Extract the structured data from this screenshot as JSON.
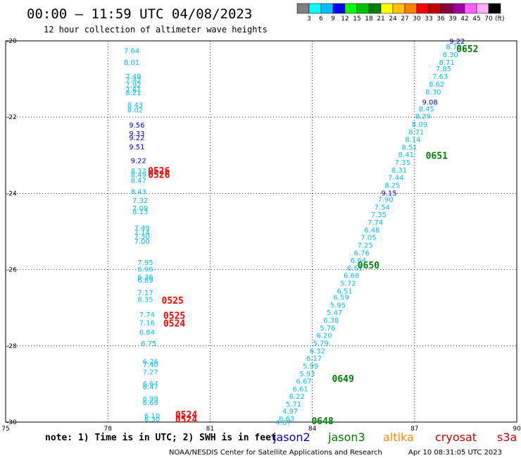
{
  "title": "00:00 – 11:59 UTC 04/08/2023",
  "subtitle": "12 hour collection of altimeter wave heights",
  "legend": {
    "unit": "(ft)",
    "colors": [
      "#808080",
      "#00ffff",
      "#00bfff",
      "#0000ff",
      "#00ff00",
      "#00c000",
      "#008000",
      "#ffff00",
      "#ffc000",
      "#ff8000",
      "#ff0000",
      "#c00000",
      "#8b0040",
      "#a000a0",
      "#ff60ff",
      "#ffb0ff",
      "#000000"
    ],
    "labels": [
      "3",
      "6",
      "9",
      "12",
      "15",
      "18",
      "21",
      "24",
      "27",
      "30",
      "33",
      "36",
      "39",
      "42",
      "45",
      "70"
    ]
  },
  "x_axis": {
    "ticks": [
      "75",
      "78",
      "81",
      "84",
      "87",
      "90"
    ],
    "values": [
      75,
      78,
      81,
      84,
      87,
      90
    ]
  },
  "y_axis": {
    "ticks": [
      "-20",
      "-22",
      "-24",
      "-26",
      "-28",
      "-30"
    ],
    "values": [
      -20,
      -22,
      -24,
      -26,
      -28,
      -30
    ]
  },
  "plot_extent": {
    "lon": [
      75,
      90
    ],
    "lat": [
      -30,
      -20
    ]
  },
  "colors": {
    "cyan": "#00bfff",
    "blue": "#0000cd",
    "red": "#ff0000",
    "green": "#008000",
    "orange": "#ff8c00",
    "darkred": "#cc0000",
    "grid": "#000000"
  },
  "observations": [
    {
      "lon": 78.7,
      "lat": -20.25,
      "text": "7.64",
      "color": "cyan"
    },
    {
      "lon": 78.7,
      "lat": -20.55,
      "text": "8.01",
      "color": "cyan"
    },
    {
      "lon": 78.75,
      "lat": -20.92,
      "text": "7.49",
      "color": "cyan"
    },
    {
      "lon": 78.75,
      "lat": -21.02,
      "text": "7.42",
      "color": "cyan"
    },
    {
      "lon": 78.75,
      "lat": -21.15,
      "text": "7.92",
      "color": "cyan"
    },
    {
      "lon": 78.75,
      "lat": -21.28,
      "text": "7.61",
      "color": "cyan"
    },
    {
      "lon": 78.75,
      "lat": -21.35,
      "text": "8.21",
      "color": "cyan"
    },
    {
      "lon": 78.8,
      "lat": -21.67,
      "text": "8.43",
      "color": "cyan"
    },
    {
      "lon": 78.8,
      "lat": -21.8,
      "text": "8.02",
      "color": "cyan"
    },
    {
      "lon": 78.85,
      "lat": -22.2,
      "text": "9.56",
      "color": "blue"
    },
    {
      "lon": 78.85,
      "lat": -22.42,
      "text": "9.33",
      "color": "blue"
    },
    {
      "lon": 78.85,
      "lat": -22.53,
      "text": "9.22",
      "color": "blue"
    },
    {
      "lon": 78.85,
      "lat": -22.77,
      "text": "9.51",
      "color": "blue"
    },
    {
      "lon": 78.9,
      "lat": -23.13,
      "text": "9.22",
      "color": "blue"
    },
    {
      "lon": 78.9,
      "lat": -23.4,
      "text": "8.33",
      "color": "cyan"
    },
    {
      "lon": 78.9,
      "lat": -23.5,
      "text": "8.49",
      "color": "cyan"
    },
    {
      "lon": 78.9,
      "lat": -23.65,
      "text": "8.47",
      "color": "cyan"
    },
    {
      "lon": 78.9,
      "lat": -23.95,
      "text": "8.43",
      "color": "cyan"
    },
    {
      "lon": 78.95,
      "lat": -24.18,
      "text": "7.32",
      "color": "cyan"
    },
    {
      "lon": 78.95,
      "lat": -24.38,
      "text": "7.09",
      "color": "cyan"
    },
    {
      "lon": 78.95,
      "lat": -24.47,
      "text": "8.13",
      "color": "cyan"
    },
    {
      "lon": 79.0,
      "lat": -24.9,
      "text": "7.49",
      "color": "cyan"
    },
    {
      "lon": 79.0,
      "lat": -25.02,
      "text": "7.14",
      "color": "cyan"
    },
    {
      "lon": 79.0,
      "lat": -25.12,
      "text": "7.30",
      "color": "cyan"
    },
    {
      "lon": 79.0,
      "lat": -25.25,
      "text": "7.00",
      "color": "cyan"
    },
    {
      "lon": 79.1,
      "lat": -25.8,
      "text": "7.95",
      "color": "cyan"
    },
    {
      "lon": 79.1,
      "lat": -25.98,
      "text": "6.96",
      "color": "cyan"
    },
    {
      "lon": 79.1,
      "lat": -26.18,
      "text": "6.36",
      "color": "cyan"
    },
    {
      "lon": 79.1,
      "lat": -26.27,
      "text": "6.89",
      "color": "cyan"
    },
    {
      "lon": 79.1,
      "lat": -26.6,
      "text": "7.17",
      "color": "cyan"
    },
    {
      "lon": 79.1,
      "lat": -26.77,
      "text": "8.35",
      "color": "cyan"
    },
    {
      "lon": 79.15,
      "lat": -27.17,
      "text": "7.74",
      "color": "cyan"
    },
    {
      "lon": 79.15,
      "lat": -27.38,
      "text": "7.16",
      "color": "cyan"
    },
    {
      "lon": 79.15,
      "lat": -27.63,
      "text": "6.84",
      "color": "cyan"
    },
    {
      "lon": 79.2,
      "lat": -27.93,
      "text": "6.75",
      "color": "cyan"
    },
    {
      "lon": 79.25,
      "lat": -28.4,
      "text": "6.26",
      "color": "cyan"
    },
    {
      "lon": 79.25,
      "lat": -28.48,
      "text": "7.40",
      "color": "cyan"
    },
    {
      "lon": 79.25,
      "lat": -28.68,
      "text": "7.27",
      "color": "cyan"
    },
    {
      "lon": 79.25,
      "lat": -28.98,
      "text": "6.64",
      "color": "cyan"
    },
    {
      "lon": 79.25,
      "lat": -29.07,
      "text": "6.47",
      "color": "cyan"
    },
    {
      "lon": 79.25,
      "lat": -29.38,
      "text": "6.99",
      "color": "cyan"
    },
    {
      "lon": 79.25,
      "lat": -29.48,
      "text": "6.69",
      "color": "cyan"
    },
    {
      "lon": 79.3,
      "lat": -29.82,
      "text": "6.10",
      "color": "cyan"
    },
    {
      "lon": 79.3,
      "lat": -29.92,
      "text": "6.30",
      "color": "cyan"
    },
    {
      "lon": 88.25,
      "lat": -20.0,
      "text": "9.22",
      "color": "blue"
    },
    {
      "lon": 88.15,
      "lat": -20.15,
      "text": "8.79",
      "color": "cyan"
    },
    {
      "lon": 88.05,
      "lat": -20.35,
      "text": "8.30",
      "color": "cyan"
    },
    {
      "lon": 87.95,
      "lat": -20.55,
      "text": "8.71",
      "color": "cyan"
    },
    {
      "lon": 87.85,
      "lat": -20.72,
      "text": "7.85",
      "color": "cyan"
    },
    {
      "lon": 87.75,
      "lat": -20.92,
      "text": "7.63",
      "color": "cyan"
    },
    {
      "lon": 87.65,
      "lat": -21.13,
      "text": "8.62",
      "color": "cyan"
    },
    {
      "lon": 87.55,
      "lat": -21.33,
      "text": "8.30",
      "color": "cyan"
    },
    {
      "lon": 87.45,
      "lat": -21.6,
      "text": "9.08",
      "color": "blue"
    },
    {
      "lon": 87.35,
      "lat": -21.77,
      "text": "8.45",
      "color": "cyan"
    },
    {
      "lon": 87.25,
      "lat": -21.97,
      "text": "8.29",
      "color": "cyan"
    },
    {
      "lon": 87.15,
      "lat": -22.18,
      "text": "8.09",
      "color": "cyan"
    },
    {
      "lon": 87.05,
      "lat": -22.38,
      "text": "8.71",
      "color": "cyan"
    },
    {
      "lon": 86.95,
      "lat": -22.58,
      "text": "8.14",
      "color": "cyan"
    },
    {
      "lon": 86.85,
      "lat": -22.78,
      "text": "8.51",
      "color": "cyan"
    },
    {
      "lon": 86.75,
      "lat": -22.98,
      "text": "8.41",
      "color": "cyan"
    },
    {
      "lon": 86.65,
      "lat": -23.18,
      "text": "7.35",
      "color": "cyan"
    },
    {
      "lon": 86.55,
      "lat": -23.38,
      "text": "8.31",
      "color": "cyan"
    },
    {
      "lon": 86.45,
      "lat": -23.58,
      "text": "7.44",
      "color": "cyan"
    },
    {
      "lon": 86.35,
      "lat": -23.78,
      "text": "8.25",
      "color": "cyan"
    },
    {
      "lon": 86.25,
      "lat": -23.98,
      "text": "9.15",
      "color": "blue"
    },
    {
      "lon": 86.15,
      "lat": -24.15,
      "text": "7.90",
      "color": "cyan"
    },
    {
      "lon": 86.05,
      "lat": -24.35,
      "text": "7.54",
      "color": "cyan"
    },
    {
      "lon": 85.95,
      "lat": -24.55,
      "text": "7.35",
      "color": "cyan"
    },
    {
      "lon": 85.85,
      "lat": -24.75,
      "text": "7.74",
      "color": "cyan"
    },
    {
      "lon": 85.75,
      "lat": -24.95,
      "text": "6.48",
      "color": "cyan"
    },
    {
      "lon": 85.65,
      "lat": -25.15,
      "text": "7.05",
      "color": "cyan"
    },
    {
      "lon": 85.55,
      "lat": -25.35,
      "text": "7.25",
      "color": "cyan"
    },
    {
      "lon": 85.45,
      "lat": -25.55,
      "text": "6.76",
      "color": "cyan"
    },
    {
      "lon": 85.35,
      "lat": -25.75,
      "text": "6.64",
      "color": "cyan"
    },
    {
      "lon": 85.25,
      "lat": -25.95,
      "text": "6.61",
      "color": "cyan"
    },
    {
      "lon": 85.15,
      "lat": -26.15,
      "text": "6.68",
      "color": "cyan"
    },
    {
      "lon": 85.05,
      "lat": -26.35,
      "text": "5.72",
      "color": "cyan"
    },
    {
      "lon": 84.95,
      "lat": -26.55,
      "text": "6.51",
      "color": "cyan"
    },
    {
      "lon": 84.85,
      "lat": -26.72,
      "text": "6.59",
      "color": "cyan"
    },
    {
      "lon": 84.75,
      "lat": -26.92,
      "text": "5.95",
      "color": "cyan"
    },
    {
      "lon": 84.65,
      "lat": -27.12,
      "text": "5.47",
      "color": "cyan"
    },
    {
      "lon": 84.55,
      "lat": -27.32,
      "text": "6.38",
      "color": "cyan"
    },
    {
      "lon": 84.45,
      "lat": -27.52,
      "text": "5.76",
      "color": "cyan"
    },
    {
      "lon": 84.35,
      "lat": -27.72,
      "text": "6.20",
      "color": "cyan"
    },
    {
      "lon": 84.25,
      "lat": -27.92,
      "text": "5.79",
      "color": "cyan"
    },
    {
      "lon": 84.15,
      "lat": -28.12,
      "text": "6.32",
      "color": "cyan"
    },
    {
      "lon": 84.05,
      "lat": -28.32,
      "text": "6.17",
      "color": "cyan"
    },
    {
      "lon": 83.95,
      "lat": -28.52,
      "text": "5.99",
      "color": "cyan"
    },
    {
      "lon": 83.85,
      "lat": -28.72,
      "text": "5.93",
      "color": "cyan"
    },
    {
      "lon": 83.75,
      "lat": -28.92,
      "text": "6.67",
      "color": "cyan"
    },
    {
      "lon": 83.65,
      "lat": -29.12,
      "text": "6.61",
      "color": "cyan"
    },
    {
      "lon": 83.55,
      "lat": -29.32,
      "text": "6.22",
      "color": "cyan"
    },
    {
      "lon": 83.45,
      "lat": -29.52,
      "text": "5.71",
      "color": "cyan"
    },
    {
      "lon": 83.35,
      "lat": -29.7,
      "text": "4.97",
      "color": "cyan"
    },
    {
      "lon": 83.25,
      "lat": -29.9,
      "text": "6.63",
      "color": "cyan"
    },
    {
      "lon": 83.15,
      "lat": -30.0,
      "text": "4.67",
      "color": "cyan"
    }
  ],
  "pass_labels": [
    {
      "lon": 79.5,
      "lat": -23.4,
      "text": "0526",
      "color": "red"
    },
    {
      "lon": 79.5,
      "lat": -23.5,
      "text": "0526",
      "color": "red"
    },
    {
      "lon": 79.9,
      "lat": -26.8,
      "text": "0525",
      "color": "red"
    },
    {
      "lon": 79.95,
      "lat": -27.2,
      "text": "0525",
      "color": "red"
    },
    {
      "lon": 79.95,
      "lat": -27.4,
      "text": "0524",
      "color": "red"
    },
    {
      "lon": 80.3,
      "lat": -29.8,
      "text": "0524",
      "color": "red"
    },
    {
      "lon": 80.3,
      "lat": -29.92,
      "text": "0524",
      "color": "red"
    },
    {
      "lon": 88.55,
      "lat": -20.2,
      "text": "0652",
      "color": "green"
    },
    {
      "lon": 87.65,
      "lat": -23.0,
      "text": "0651",
      "color": "green"
    },
    {
      "lon": 85.65,
      "lat": -25.88,
      "text": "0650",
      "color": "green"
    },
    {
      "lon": 84.9,
      "lat": -28.85,
      "text": "0649",
      "color": "green"
    },
    {
      "lon": 84.3,
      "lat": -29.96,
      "text": "0648",
      "color": "green"
    }
  ],
  "footer": {
    "note": "note: 1) Time is in UTC; 2) SWH is in feet",
    "satellites": [
      {
        "name": "jason2",
        "color": "#0000cd"
      },
      {
        "name": "jason3",
        "color": "#008000"
      },
      {
        "name": "altika",
        "color": "#ff8c00"
      },
      {
        "name": "cryosat",
        "color": "#cc0000"
      },
      {
        "name": "s3a",
        "color": "#cc0000"
      }
    ],
    "credit": "NOAA/NESDIS Center for Satellite Applications and Research",
    "timestamp": "Apr 10 08:31:05 UTC 2023"
  }
}
